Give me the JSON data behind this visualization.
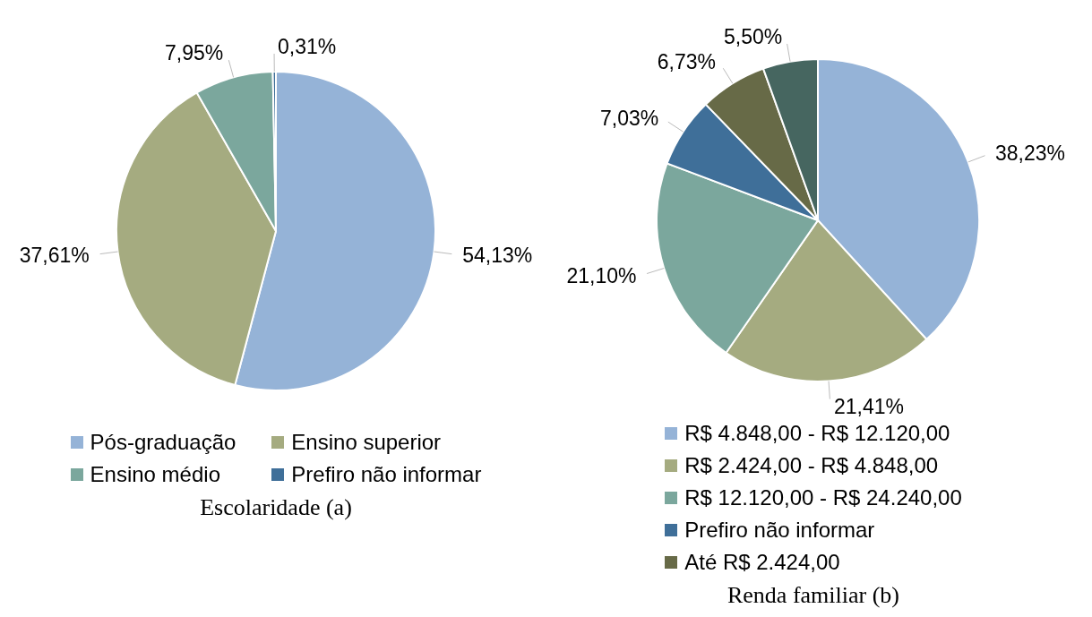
{
  "chart_data": [
    {
      "type": "pie",
      "title": "Escolaridade (a)",
      "categories": [
        "Pós-graduação",
        "Ensino superior",
        "Ensino médio",
        "Prefiro não informar"
      ],
      "values": [
        54.13,
        37.61,
        7.95,
        0.31
      ],
      "colors": [
        "#95b3d7",
        "#a5ab80",
        "#7ba79d",
        "#3f6f99"
      ],
      "value_labels": [
        "54,13%",
        "37,61%",
        "7,95%",
        "0,31%"
      ],
      "legend": "bottom"
    },
    {
      "type": "pie",
      "title": "Renda familiar (b)",
      "categories": [
        "R$ 4.848,00 - R$ 12.120,00",
        "R$ 2.424,00 - R$ 4.848,00",
        "R$ 12.120,00 - R$ 24.240,00",
        "Prefiro não informar",
        "Até R$ 2.424,00",
        null
      ],
      "values": [
        38.23,
        21.41,
        21.1,
        7.03,
        6.73,
        5.5
      ],
      "colors": [
        "#95b3d7",
        "#a5ab80",
        "#7ba79d",
        "#3f6f99",
        "#676a47",
        "#466660"
      ],
      "value_labels": [
        "38,23%",
        "21,41%",
        "21,10%",
        "7,03%",
        "6,73%",
        "5,50%"
      ],
      "legend": "bottom"
    }
  ]
}
